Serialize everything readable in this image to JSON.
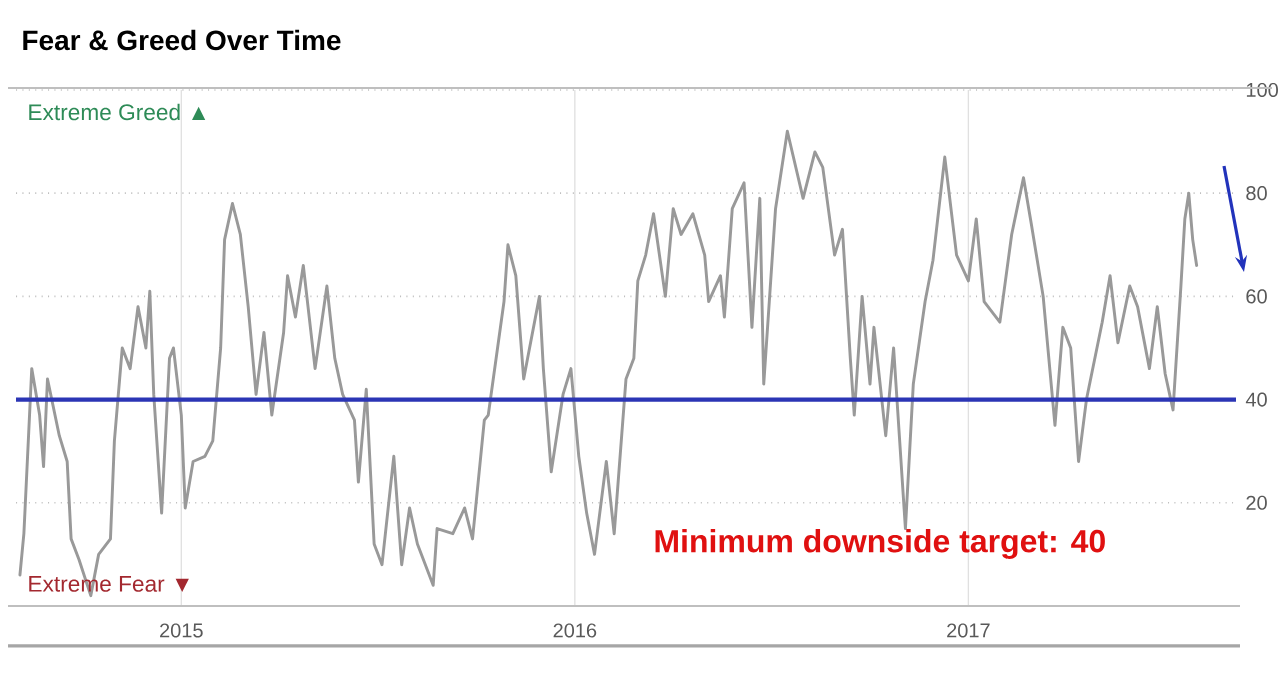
{
  "chart_data": {
    "type": "line",
    "title": "Fear & Greed Over Time",
    "x": [
      2014.59,
      2014.6,
      2014.62,
      2014.64,
      2014.65,
      2014.66,
      2014.69,
      2014.71,
      2014.72,
      2014.74,
      2014.77,
      2014.79,
      2014.82,
      2014.83,
      2014.85,
      2014.87,
      2014.89,
      2014.91,
      2014.92,
      2014.93,
      2014.95,
      2014.97,
      2014.98,
      2015.0,
      2015.01,
      2015.03,
      2015.06,
      2015.08,
      2015.1,
      2015.11,
      2015.13,
      2015.15,
      2015.17,
      2015.19,
      2015.21,
      2015.23,
      2015.26,
      2015.27,
      2015.29,
      2015.31,
      2015.34,
      2015.37,
      2015.39,
      2015.41,
      2015.44,
      2015.45,
      2015.47,
      2015.49,
      2015.51,
      2015.54,
      2015.56,
      2015.58,
      2015.6,
      2015.64,
      2015.65,
      2015.69,
      2015.72,
      2015.74,
      2015.77,
      2015.78,
      2015.82,
      2015.83,
      2015.85,
      2015.87,
      2015.88,
      2015.91,
      2015.92,
      2015.94,
      2015.97,
      2015.99,
      2016.01,
      2016.03,
      2016.05,
      2016.08,
      2016.1,
      2016.13,
      2016.15,
      2016.16,
      2016.18,
      2016.2,
      2016.23,
      2016.25,
      2016.27,
      2016.3,
      2016.33,
      2016.34,
      2016.37,
      2016.38,
      2016.4,
      2016.43,
      2016.45,
      2016.47,
      2016.48,
      2016.51,
      2016.54,
      2016.58,
      2016.61,
      2016.63,
      2016.66,
      2016.68,
      2016.7,
      2016.71,
      2016.73,
      2016.75,
      2016.76,
      2016.79,
      2016.81,
      2016.84,
      2016.86,
      2016.89,
      2016.91,
      2016.94,
      2016.97,
      2017.0,
      2017.02,
      2017.04,
      2017.08,
      2017.11,
      2017.14,
      2017.16,
      2017.19,
      2017.22,
      2017.24,
      2017.26,
      2017.28,
      2017.3,
      2017.34,
      2017.36,
      2017.38,
      2017.41,
      2017.43,
      2017.46,
      2017.48,
      2017.5,
      2017.52,
      2017.54,
      2017.55,
      2017.56,
      2017.57,
      2017.58
    ],
    "series": [
      {
        "color": "#999999",
        "values": [
          6,
          14,
          46,
          37,
          27,
          44,
          33,
          28,
          13,
          9,
          2,
          10,
          13,
          32,
          50,
          46,
          58,
          50,
          61,
          41,
          18,
          48,
          50,
          37,
          19,
          28,
          29,
          32,
          50,
          71,
          78,
          72,
          58,
          41,
          53,
          37,
          53,
          64,
          56,
          66,
          46,
          62,
          48,
          41,
          36,
          24,
          42,
          12,
          8,
          29,
          8,
          19,
          12,
          4,
          15,
          14,
          19,
          13,
          36,
          37,
          59,
          70,
          64,
          44,
          48,
          60,
          46,
          26,
          41,
          46,
          29,
          18,
          10,
          28,
          14,
          44,
          48,
          63,
          68,
          76,
          60,
          77,
          72,
          76,
          68,
          59,
          64,
          56,
          77,
          82,
          54,
          79,
          43,
          77,
          92,
          79,
          88,
          85,
          68,
          73,
          48,
          37,
          60,
          43,
          54,
          33,
          50,
          15,
          43,
          59,
          67,
          87,
          68,
          63,
          75,
          59,
          55,
          72,
          83,
          74,
          60,
          35,
          54,
          50,
          28,
          40,
          55,
          64,
          51,
          62,
          58,
          46,
          58,
          45,
          38,
          62,
          75,
          80,
          71,
          66
        ]
      }
    ],
    "xlim": [
      2014.58,
      2017.68
    ],
    "xticks": [
      {
        "value": 2015,
        "label": "2015"
      },
      {
        "value": 2016,
        "label": "2016"
      },
      {
        "value": 2017,
        "label": "2017"
      }
    ],
    "ylim": [
      0,
      100
    ],
    "yticks": [
      20,
      40,
      60,
      80,
      100
    ],
    "grid": true,
    "ref_lines": [
      {
        "axis": "y",
        "value": 40,
        "color": "#2b35b5"
      }
    ],
    "annotations": [
      "Extreme Greed ▲",
      "Extreme Fear ▼",
      "Minimum downside target: 40"
    ]
  }
}
